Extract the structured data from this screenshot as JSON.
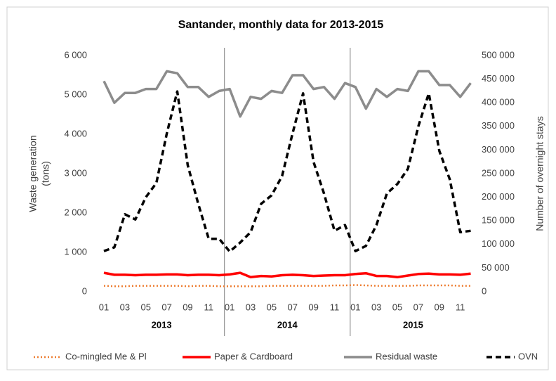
{
  "chart_data": {
    "type": "line",
    "title": "Santander, monthly data for 2013-2015",
    "categories": [
      "01",
      null,
      "03",
      null,
      "05",
      null,
      "07",
      null,
      "09",
      null,
      "11",
      null,
      "01",
      null,
      "03",
      null,
      "05",
      null,
      "07",
      null,
      "09",
      null,
      "11",
      null,
      "01",
      null,
      "03",
      null,
      "05",
      null,
      "07",
      null,
      "09",
      null,
      "11",
      null
    ],
    "years": [
      "2013",
      "2014",
      "2015"
    ],
    "ylabel": [
      "Waste generation",
      "(tons)"
    ],
    "y2label": "Number of overnight stays",
    "ylim": [
      0,
      6000
    ],
    "yticks": [
      0,
      {
        "value": 1000,
        "label": "1 000"
      },
      {
        "value": 2000,
        "label": "2 000"
      },
      {
        "value": 3000,
        "label": "3 000"
      },
      {
        "value": 4000,
        "label": "4 000"
      },
      {
        "value": 5000,
        "label": "5 000"
      },
      {
        "value": 6000,
        "label": "6 000"
      }
    ],
    "y2lim": [
      0,
      500000
    ],
    "y2ticks": [
      0,
      {
        "value": 50000,
        "label": "50 000"
      },
      {
        "value": 100000,
        "label": "100 000"
      },
      {
        "value": 150000,
        "label": "150 000"
      },
      {
        "value": 200000,
        "label": "200 000"
      },
      {
        "value": 250000,
        "label": "250 000"
      },
      {
        "value": 300000,
        "label": "300 000"
      },
      {
        "value": 350000,
        "label": "350 000"
      },
      {
        "value": 400000,
        "label": "400 000"
      },
      {
        "value": 450000,
        "label": "450 000"
      },
      {
        "value": 500000,
        "label": "500 000"
      }
    ],
    "series": [
      {
        "name": "Co-mingled Me & Pl",
        "color": "#ed7d31",
        "style": "dotted",
        "values": [
          150,
          140,
          140,
          150,
          150,
          150,
          150,
          150,
          140,
          150,
          150,
          140,
          140,
          140,
          140,
          140,
          150,
          150,
          150,
          150,
          150,
          150,
          160,
          160,
          170,
          160,
          150,
          150,
          150,
          150,
          160,
          160,
          160,
          160,
          150,
          150
        ]
      },
      {
        "name": "Paper & Cardboard",
        "color": "#ff0000",
        "style": "solid",
        "values": [
          480,
          430,
          430,
          420,
          430,
          430,
          440,
          440,
          420,
          430,
          430,
          420,
          440,
          480,
          370,
          400,
          390,
          420,
          430,
          420,
          400,
          410,
          420,
          420,
          450,
          470,
          400,
          400,
          370,
          410,
          450,
          460,
          440,
          440,
          430,
          460
        ]
      },
      {
        "name": "Residual waste",
        "color": "#8c8c8c",
        "style": "solid",
        "values": [
          5350,
          4800,
          5050,
          5050,
          5150,
          5150,
          5600,
          5550,
          5200,
          5200,
          4950,
          5100,
          5150,
          4450,
          4950,
          4900,
          5100,
          5050,
          5500,
          5500,
          5150,
          5200,
          4900,
          5300,
          5200,
          4650,
          5150,
          4950,
          5150,
          5100,
          5600,
          5600,
          5250,
          5250,
          4950,
          5300
        ]
      },
      {
        "name": "OVN",
        "color": "#000000",
        "style": "dashed",
        "axis": "y2",
        "values": [
          86000,
          94000,
          164000,
          153000,
          200000,
          230000,
          335000,
          424000,
          268000,
          186000,
          112000,
          112000,
          85000,
          104000,
          126000,
          186000,
          204000,
          245000,
          335000,
          420000,
          275000,
          208000,
          129000,
          141000,
          86000,
          97000,
          141000,
          208000,
          228000,
          260000,
          350000,
          420000,
          298000,
          238000,
          126000,
          129000
        ]
      }
    ]
  }
}
